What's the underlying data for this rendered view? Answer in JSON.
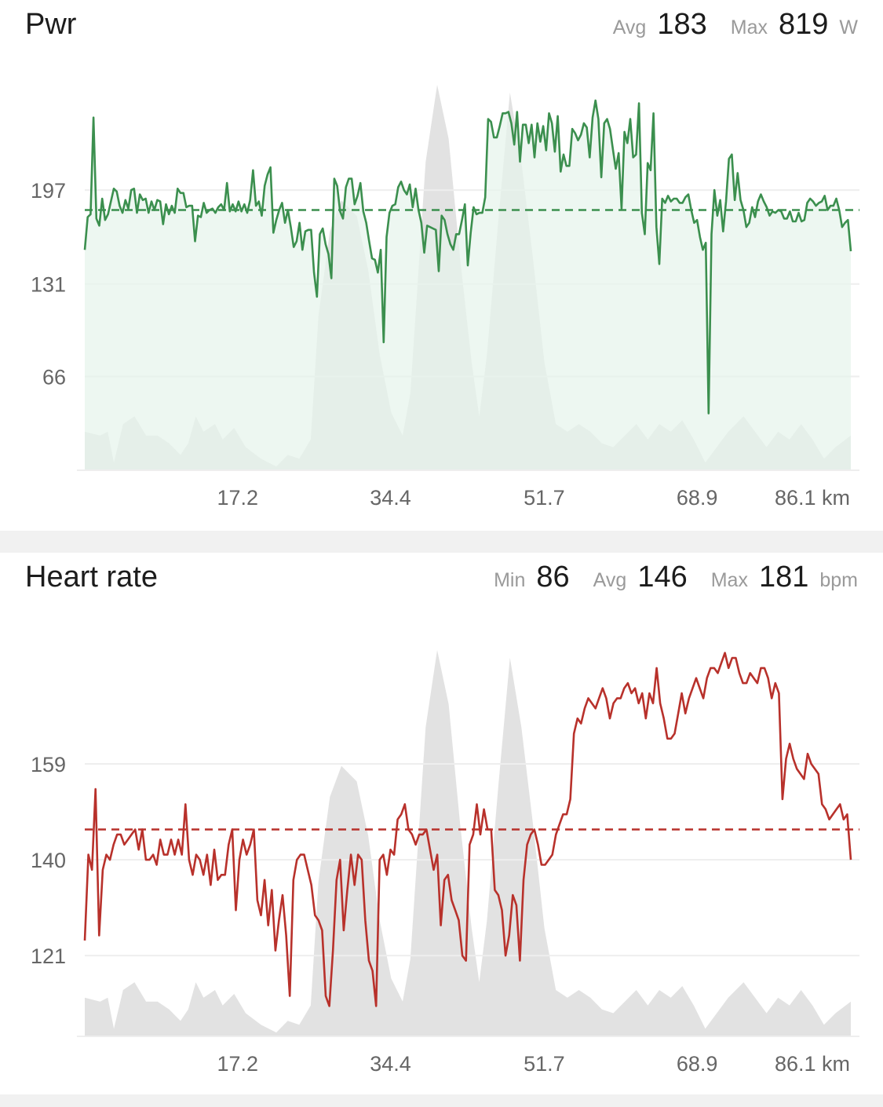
{
  "charts": {
    "power": {
      "title": "Pwr",
      "stats": [
        {
          "label": "Avg",
          "value": "183"
        },
        {
          "label": "Max",
          "value": "819"
        }
      ],
      "unit": "W"
    },
    "hr": {
      "title": "Heart rate",
      "stats": [
        {
          "label": "Min",
          "value": "86"
        },
        {
          "label": "Avg",
          "value": "146"
        },
        {
          "label": "Max",
          "value": "181"
        }
      ],
      "unit": "bpm"
    }
  },
  "colors": {
    "power_line": "#3b8f4e",
    "power_fill": "#e6f4eb",
    "hr_line": "#b8312b",
    "elevation_fill": "#e2e2e2",
    "grid": "#eeeeee",
    "axis_text": "#666666"
  },
  "chart_data": [
    {
      "type": "line",
      "title": "Pwr",
      "xlabel": "km",
      "ylabel": "W",
      "x_ticks": [
        "17.2",
        "34.4",
        "51.7",
        "68.9",
        "86.1 km"
      ],
      "x_tick_values": [
        17.2,
        34.4,
        51.7,
        68.9,
        86.1
      ],
      "y_ticks": [
        66,
        131,
        197
      ],
      "xlim": [
        0,
        86.2
      ],
      "ylim": [
        0,
        260
      ],
      "grid": true,
      "average_line": 183,
      "series": [
        {
          "values": [
            155,
            178,
            180,
            248,
            177,
            172,
            191,
            176,
            180,
            189,
            198,
            196,
            186,
            181,
            190,
            184,
            197,
            198,
            181,
            194,
            190,
            191,
            181,
            189,
            183,
            190,
            189,
            173,
            187,
            180,
            186,
            181,
            198,
            195,
            195,
            185,
            186,
            186,
            161,
            179,
            178,
            188,
            181,
            183,
            184,
            181,
            185,
            187,
            183,
            202,
            182,
            187,
            182,
            189,
            182,
            187,
            181,
            190,
            211,
            186,
            189,
            179,
            200,
            208,
            213,
            167,
            176,
            183,
            188,
            174,
            183,
            171,
            157,
            161,
            174,
            155,
            168,
            169,
            169,
            139,
            122,
            166,
            170,
            159,
            152,
            135,
            205,
            200,
            182,
            177,
            199,
            205,
            205,
            187,
            193,
            202,
            182,
            174,
            161,
            149,
            148,
            139,
            155,
            90,
            164,
            181,
            186,
            187,
            199,
            203,
            197,
            194,
            201,
            185,
            198,
            183,
            174,
            153,
            172,
            171,
            170,
            169,
            140,
            179,
            176,
            166,
            159,
            155,
            166,
            166,
            176,
            187,
            144,
            167,
            185,
            180,
            181,
            181,
            192,
            247,
            245,
            234,
            234,
            242,
            251,
            251,
            252,
            244,
            229,
            252,
            217,
            243,
            243,
            230,
            243,
            220,
            244,
            231,
            242,
            225,
            251,
            244,
            224,
            249,
            210,
            222,
            214,
            214,
            240,
            237,
            232,
            236,
            244,
            241,
            220,
            248,
            260,
            247,
            206,
            244,
            247,
            240,
            226,
            212,
            223,
            184,
            238,
            230,
            247,
            220,
            222,
            258,
            181,
            166,
            216,
            211,
            251,
            171,
            145,
            191,
            188,
            193,
            189,
            191,
            191,
            188,
            188,
            192,
            194,
            183,
            174,
            176,
            164,
            155,
            160,
            40,
            166,
            197,
            179,
            190,
            168,
            189,
            219,
            222,
            190,
            209,
            190,
            183,
            171,
            174,
            185,
            178,
            189,
            194,
            189,
            185,
            179,
            182,
            181,
            183,
            182,
            177,
            177,
            182,
            175,
            175,
            181,
            175,
            176,
            188,
            191,
            189,
            186,
            188,
            189,
            193,
            183,
            186,
            186,
            191,
            183,
            171,
            174,
            176,
            154
          ]
        }
      ]
    },
    {
      "type": "line",
      "title": "Heart rate",
      "xlabel": "km",
      "ylabel": "bpm",
      "x_ticks": [
        "17.2",
        "34.4",
        "51.7",
        "68.9",
        "86.1 km"
      ],
      "x_tick_values": [
        17.2,
        34.4,
        51.7,
        68.9,
        86.1
      ],
      "y_ticks": [
        121,
        140,
        159
      ],
      "xlim": [
        0,
        86.2
      ],
      "ylim": [
        105,
        180
      ],
      "grid": true,
      "average_line": 146,
      "series": [
        {
          "values": [
            124,
            141,
            138,
            154,
            125,
            138,
            141,
            140,
            143,
            145,
            145,
            143,
            144,
            145,
            146,
            142,
            146,
            140,
            140,
            141,
            139,
            144,
            141,
            141,
            144,
            141,
            144,
            141,
            151,
            140,
            137,
            141,
            140,
            137,
            141,
            135,
            142,
            136,
            137,
            137,
            143,
            146,
            130,
            140,
            144,
            141,
            143,
            146,
            132,
            129,
            136,
            127,
            134,
            122,
            128,
            133,
            125,
            113,
            136,
            140,
            141,
            141,
            138,
            135,
            129,
            128,
            126,
            113,
            111,
            122,
            136,
            140,
            126,
            134,
            141,
            135,
            141,
            140,
            128,
            120,
            118,
            111,
            140,
            141,
            137,
            142,
            141,
            148,
            149,
            151,
            146,
            145,
            143,
            145,
            145,
            146,
            142,
            138,
            141,
            127,
            136,
            137,
            132,
            130,
            128,
            121,
            120,
            143,
            145,
            151,
            145,
            150,
            146,
            146,
            134,
            133,
            130,
            121,
            125,
            133,
            131,
            120,
            136,
            143,
            145,
            146,
            143,
            139,
            139,
            140,
            141,
            145,
            147,
            149,
            149,
            152,
            165,
            168,
            167,
            170,
            172,
            171,
            170,
            172,
            174,
            172,
            168,
            171,
            172,
            172,
            174,
            175,
            173,
            174,
            171,
            173,
            168,
            173,
            171,
            178,
            171,
            168,
            164,
            164,
            165,
            169,
            173,
            169,
            172,
            174,
            176,
            174,
            172,
            176,
            178,
            178,
            177,
            179,
            181,
            178,
            180,
            180,
            177,
            175,
            175,
            177,
            176,
            175,
            178,
            178,
            176,
            172,
            175,
            173,
            152,
            160,
            163,
            160,
            158,
            157,
            156,
            161,
            159,
            158,
            157,
            151,
            150,
            148,
            149,
            150,
            151,
            148,
            149,
            140
          ]
        }
      ]
    }
  ]
}
